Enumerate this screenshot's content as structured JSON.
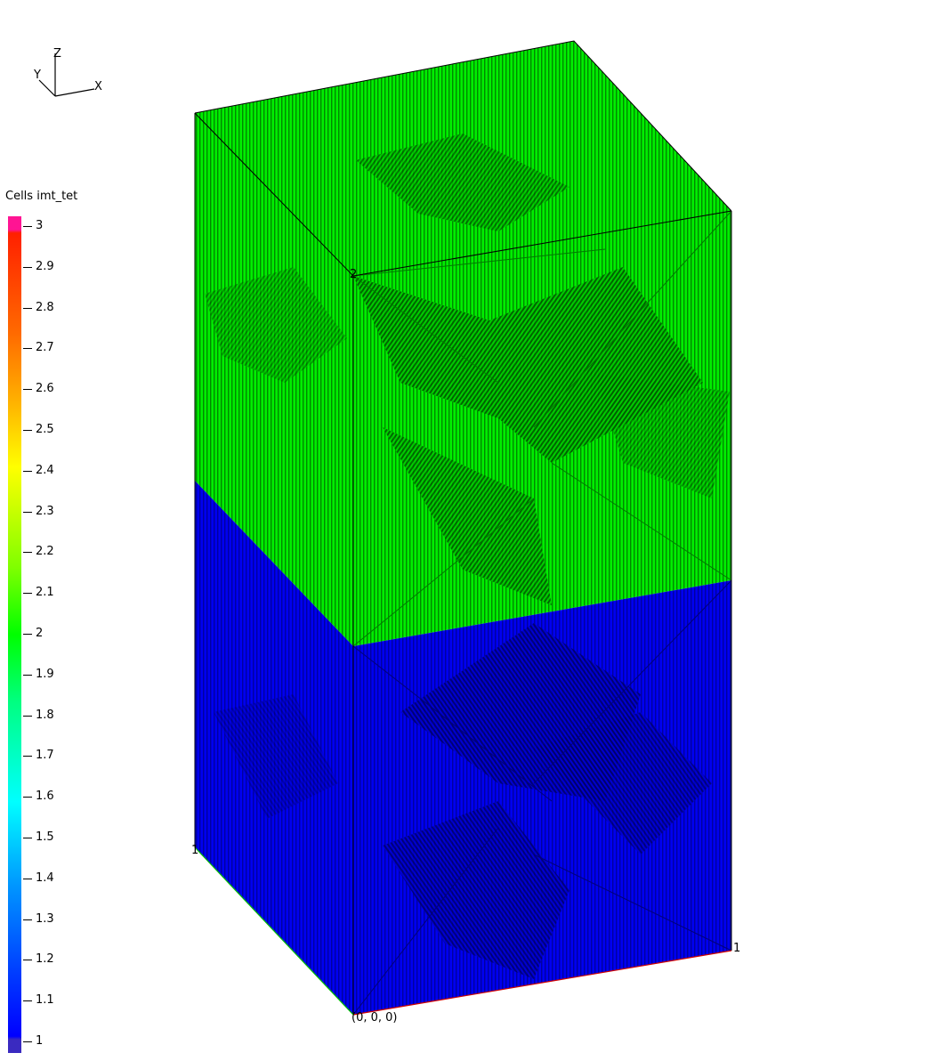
{
  "axes_triad": {
    "x": "X",
    "y": "Y",
    "z": "Z"
  },
  "legend": {
    "title": "Cells imt_tet",
    "ticks": [
      "3",
      "2.9",
      "2.8",
      "2.7",
      "2.6",
      "2.5",
      "2.4",
      "2.3",
      "2.2",
      "2.1",
      "2",
      "1.9",
      "1.8",
      "1.7",
      "1.6",
      "1.5",
      "1.4",
      "1.3",
      "1.2",
      "1.1",
      "1"
    ],
    "range": [
      1,
      3
    ]
  },
  "corner_labels": {
    "top_front": "2",
    "bottom_left": "1",
    "bottom_right": "1",
    "origin": "(0, 0, 0)"
  },
  "colors": {
    "top_material": "#00ff00",
    "top_shade": "#006a00",
    "bottom_material": "#0000ff",
    "bottom_shade": "#00007a"
  },
  "materials": [
    {
      "imt": 2,
      "region": "top"
    },
    {
      "imt": 1,
      "region": "bottom"
    }
  ]
}
